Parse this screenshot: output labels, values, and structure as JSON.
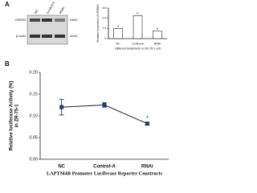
{
  "panel_labels": [
    "A",
    "B"
  ],
  "blot": {
    "lanes": [
      "NC",
      "Control-A",
      "RNAi"
    ],
    "rows": [
      "CREB3",
      "β-actin"
    ],
    "sizes": [
      "53kD",
      "42kD"
    ]
  },
  "chart_data": [
    {
      "type": "bar",
      "y_label": "Relative expression of CREB3",
      "x_label": "Different treatments in ZR-75-1 cell",
      "categories": [
        "NC",
        "Control-A",
        "RNAi"
      ],
      "values": [
        0.2,
        0.45,
        0.15
      ],
      "annotations": [
        "a",
        "b",
        "a"
      ],
      "color": "#ffffff",
      "ylim": [
        0,
        0.6
      ],
      "yticks": [
        0,
        0.2,
        0.4,
        0.6
      ]
    },
    {
      "type": "line",
      "y_label": [
        "Relative luciferase Activity (%)",
        "in ZR-75-1"
      ],
      "x_label": "LAPTM4B Promoter Luciferase Reporter Constructs",
      "categories": [
        "NC",
        "Control-A",
        "RNAi"
      ],
      "series": [
        {
          "color": "#1f3a8a",
          "values": [
            0.12,
            0.125,
            0.082
          ],
          "errors": [
            0.018,
            0.005,
            0.003
          ],
          "annotations": [
            null,
            null,
            "*"
          ]
        }
      ],
      "ylim": [
        0,
        0.2
      ],
      "yticks": [
        {
          "value": 0,
          "label": "0.00"
        },
        0.05,
        {
          "value": 0.1,
          "label": "0.10"
        },
        0.15,
        {
          "value": 0.2,
          "label": "0.20"
        }
      ]
    }
  ]
}
